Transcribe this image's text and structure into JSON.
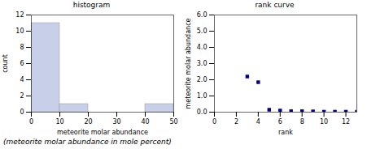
{
  "chart_data": [
    {
      "type": "histogram",
      "title": "histogram",
      "xlabel": "meteorite molar abundance",
      "ylabel": "count",
      "bins": [
        0,
        10,
        20,
        30,
        40,
        50
      ],
      "values": [
        11,
        1,
        0,
        0,
        1
      ],
      "color": "#c8cfe8",
      "xlim": [
        0,
        50
      ],
      "xticks": [
        0,
        10,
        20,
        30,
        40,
        50
      ],
      "ylim": [
        0,
        12
      ],
      "yticks": [
        0,
        2,
        4,
        6,
        8,
        10,
        12
      ]
    },
    {
      "type": "scatter",
      "title": "rank curve",
      "xlabel": "rank",
      "ylabel": "meteorite molar abundance",
      "x": [
        3,
        4,
        5,
        6,
        7,
        8,
        9,
        10,
        11,
        12,
        13
      ],
      "values": [
        2.2,
        1.85,
        0.15,
        0.1,
        0.06,
        0.06,
        0.05,
        0.03,
        0.03,
        0.03,
        0.03
      ],
      "color": "#00008b",
      "marker": "square",
      "xlim": [
        0,
        13
      ],
      "xticks": [
        0,
        2,
        4,
        6,
        8,
        10,
        12
      ],
      "ylim": [
        0,
        6
      ],
      "yticks": [
        0,
        1,
        2,
        3,
        4,
        5,
        6
      ]
    }
  ],
  "annotations": [
    "(meteorite molar abundance in mole percent)"
  ]
}
